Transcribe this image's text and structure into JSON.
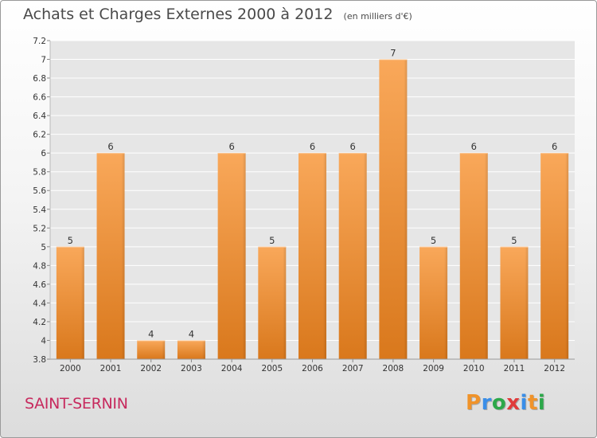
{
  "title": "Achats et Charges Externes 2000 à 2012",
  "unit": "(en milliers d'€)",
  "commune": "SAINT-SERNIN",
  "logo": {
    "text": "Proxiti",
    "colors": [
      "#f0932a",
      "#3a8ee8",
      "#2ca84a",
      "#e03a3a",
      "#3a8ee8",
      "#f0932a",
      "#2ca84a"
    ]
  },
  "colors": {
    "bar": "#f2943c",
    "bar_light": "#f9a85a",
    "bar_dark": "#d9781c",
    "commune": "#c72a5e"
  },
  "chart_data": {
    "type": "bar",
    "categories": [
      "2000",
      "2001",
      "2002",
      "2003",
      "2004",
      "2005",
      "2006",
      "2007",
      "2008",
      "2009",
      "2010",
      "2011",
      "2012"
    ],
    "values": [
      5,
      6,
      4,
      4,
      6,
      5,
      6,
      6,
      7,
      5,
      6,
      5,
      6
    ],
    "data_labels": [
      "5",
      "6",
      "4",
      "4",
      "6",
      "5",
      "6",
      "6",
      "7",
      "5",
      "6",
      "5",
      "6"
    ],
    "ylim": [
      3.8,
      7.2
    ],
    "yticks": [
      3.8,
      4,
      4.2,
      4.4,
      4.6,
      4.8,
      5,
      5.2,
      5.4,
      5.6,
      5.8,
      6,
      6.2,
      6.4,
      6.6,
      6.8,
      7,
      7.2
    ],
    "ytick_labels": [
      "3.8",
      "4",
      "4.2",
      "4.4",
      "4.6",
      "4.8",
      "5",
      "5.2",
      "5.4",
      "5.6",
      "5.8",
      "6",
      "6.2",
      "6.4",
      "6.6",
      "6.8",
      "7",
      "7.2"
    ],
    "grid": true,
    "xlabel": "",
    "ylabel": ""
  }
}
